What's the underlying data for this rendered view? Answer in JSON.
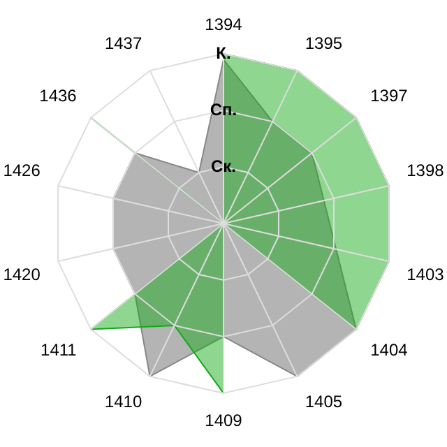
{
  "chart_data": {
    "type": "radar",
    "categories": [
      "1394",
      "1395",
      "1397",
      "1398",
      "1403",
      "1404",
      "1405",
      "1409",
      "1410",
      "1411",
      "1420",
      "1426",
      "1436",
      "1437"
    ],
    "ylim": [
      0,
      3
    ],
    "yticks": [
      {
        "value": 1,
        "label": "Ск."
      },
      {
        "value": 2,
        "label": "Сп."
      },
      {
        "value": 3,
        "label": "К."
      }
    ],
    "grid": true,
    "legend": false,
    "marker": "none",
    "series": [
      {
        "color": "#b4b4b4",
        "values": [
          2.9,
          2,
          2,
          null,
          null,
          3,
          3,
          2,
          3,
          2,
          2,
          2,
          2,
          1
        ]
      },
      {
        "color": "#14a918",
        "values": [
          3,
          3,
          3,
          3,
          3,
          3,
          0,
          3,
          2,
          3,
          0,
          0,
          3,
          0
        ]
      }
    ]
  }
}
